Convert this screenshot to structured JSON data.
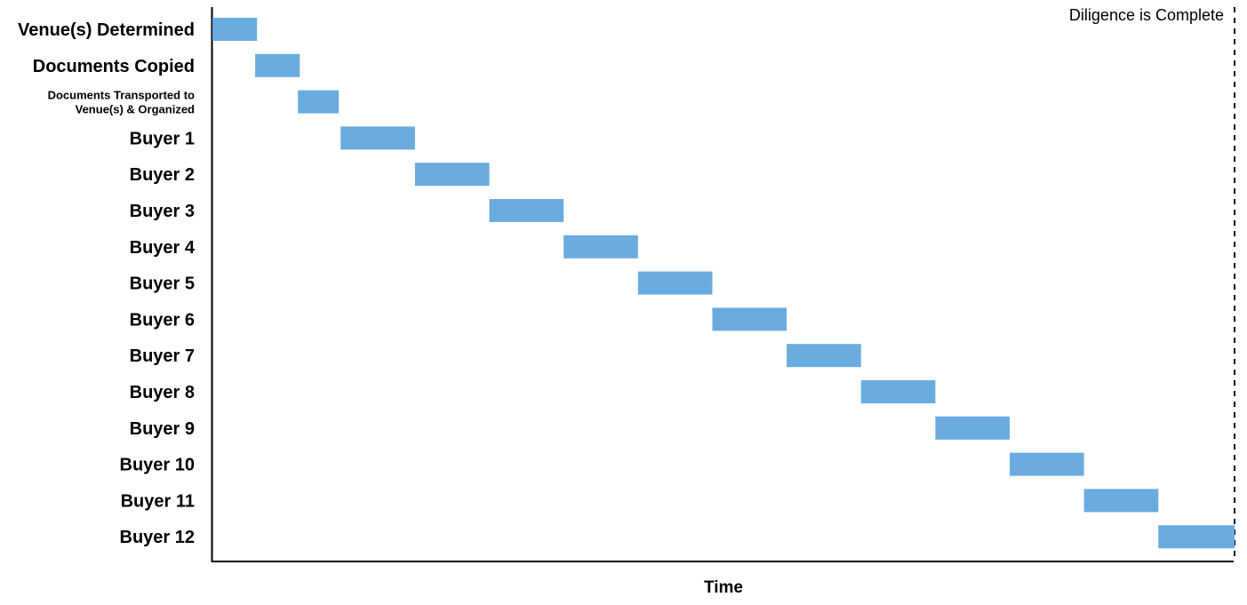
{
  "chart_data": {
    "type": "bar",
    "subtype": "gantt",
    "title": "",
    "xlabel": "Time",
    "ylabel": "",
    "grid": false,
    "legend": "none",
    "bar_color": "#6aace0",
    "axis_color": "#000000",
    "milestone": {
      "label": "Diligence is Complete",
      "x": 27.5,
      "line_style": "dashed"
    },
    "xlim": [
      0,
      27.5
    ],
    "tasks": [
      {
        "label": "Venue(s) Determined",
        "start": 0.0,
        "end": 1.2
      },
      {
        "label": "Documents Copied",
        "start": 1.15,
        "end": 2.35
      },
      {
        "label": "Documents Transported to Venue(s) & Organized",
        "label_lines": [
          "Documents Transported to",
          "Venue(s) & Organized"
        ],
        "start": 2.3,
        "end": 3.4
      },
      {
        "label": "Buyer 1",
        "start": 3.45,
        "end": 5.45
      },
      {
        "label": "Buyer 2",
        "start": 5.45,
        "end": 7.45
      },
      {
        "label": "Buyer 3",
        "start": 7.45,
        "end": 9.45
      },
      {
        "label": "Buyer 4",
        "start": 9.45,
        "end": 11.45
      },
      {
        "label": "Buyer 5",
        "start": 11.45,
        "end": 13.45
      },
      {
        "label": "Buyer 6",
        "start": 13.45,
        "end": 15.45
      },
      {
        "label": "Buyer 7",
        "start": 15.45,
        "end": 17.45
      },
      {
        "label": "Buyer 8",
        "start": 17.45,
        "end": 19.45
      },
      {
        "label": "Buyer 9",
        "start": 19.45,
        "end": 21.45
      },
      {
        "label": "Buyer 10",
        "start": 21.45,
        "end": 23.45
      },
      {
        "label": "Buyer 11",
        "start": 23.45,
        "end": 25.45
      },
      {
        "label": "Buyer 12",
        "start": 25.45,
        "end": 27.5
      }
    ]
  }
}
